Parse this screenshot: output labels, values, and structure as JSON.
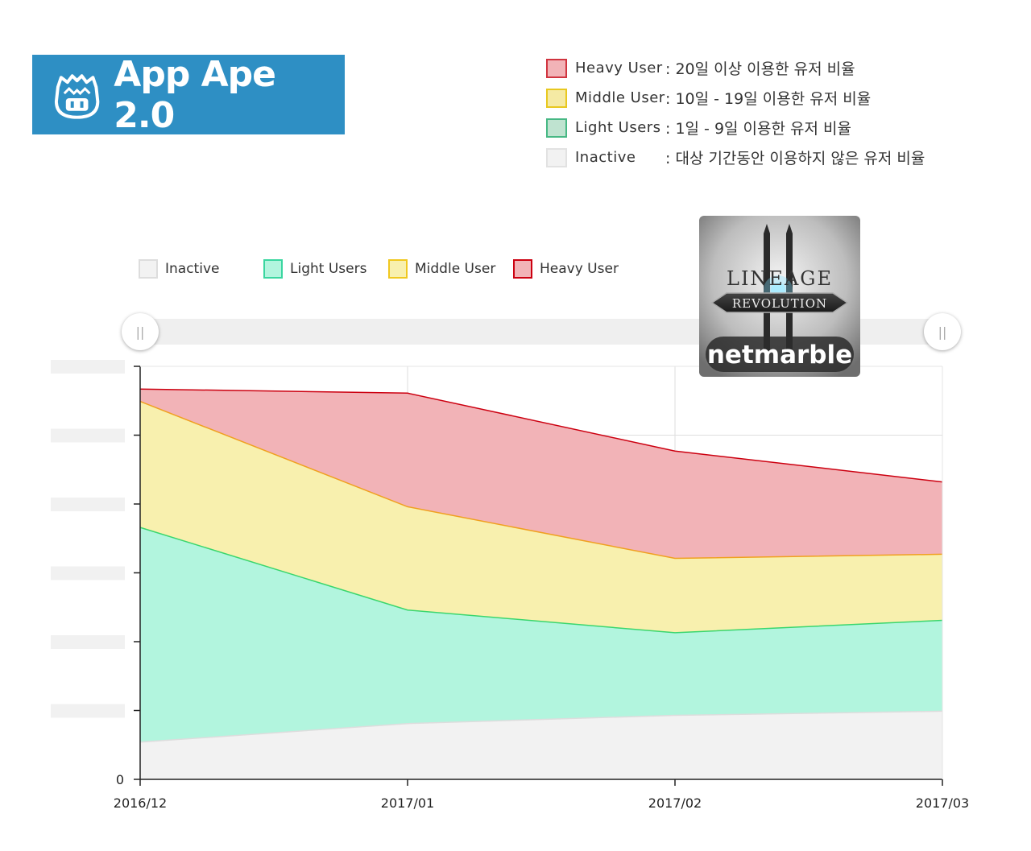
{
  "brand": {
    "name": "App Ape 2.0",
    "logo_icon": "ape-face-icon",
    "color": "#2e8fc4"
  },
  "explain_legend": [
    {
      "name": "Heavy User",
      "desc": ": 20일 이상 이용한 유저 비율",
      "fill": "#f2b3b7",
      "stroke": "#d0343f"
    },
    {
      "name": "Middle User",
      "desc": ": 10일 - 19일 이용한 유저 비율",
      "fill": "#f5eaa4",
      "stroke": "#e8c820"
    },
    {
      "name": "Light Users",
      "desc": ": 1일 - 9일 이용한 유저 비율",
      "fill": "#bfe3d0",
      "stroke": "#47b884"
    },
    {
      "name": "Inactive",
      "desc": ": 대상 기간동안 이용하지 않은 유저 비율",
      "fill": "#f2f2f2",
      "stroke": "#e2e2e2"
    }
  ],
  "game_icon": {
    "title": "LINEAGE",
    "subtitle": "REVOLUTION",
    "publisher": "netmarble"
  },
  "slider": {
    "left_handle": "||",
    "right_handle": "||"
  },
  "chart_data": {
    "type": "area",
    "stacked": true,
    "categories": [
      "2016/12",
      "2017/01",
      "2017/02",
      "2017/03"
    ],
    "series": [
      {
        "name": "Inactive",
        "values": [
          0.09,
          0.135,
          0.155,
          0.165
        ],
        "color": "#f2f2f2",
        "line": "#dddddd"
      },
      {
        "name": "Light Users",
        "values": [
          0.52,
          0.275,
          0.2,
          0.22
        ],
        "color": "#b2f5de",
        "line": "#3ad66e"
      },
      {
        "name": "Middle User",
        "values": [
          0.305,
          0.25,
          0.18,
          0.16
        ],
        "color": "#f8f0ae",
        "line": "#f0a020"
      },
      {
        "name": "Heavy User",
        "values": [
          0.03,
          0.275,
          0.26,
          0.175
        ],
        "color": "#f2b3b7",
        "line": "#cc0010"
      }
    ],
    "y_zero_label": "0",
    "ylim": [
      0,
      1
    ],
    "grid": true,
    "legend_position": "top-left"
  }
}
